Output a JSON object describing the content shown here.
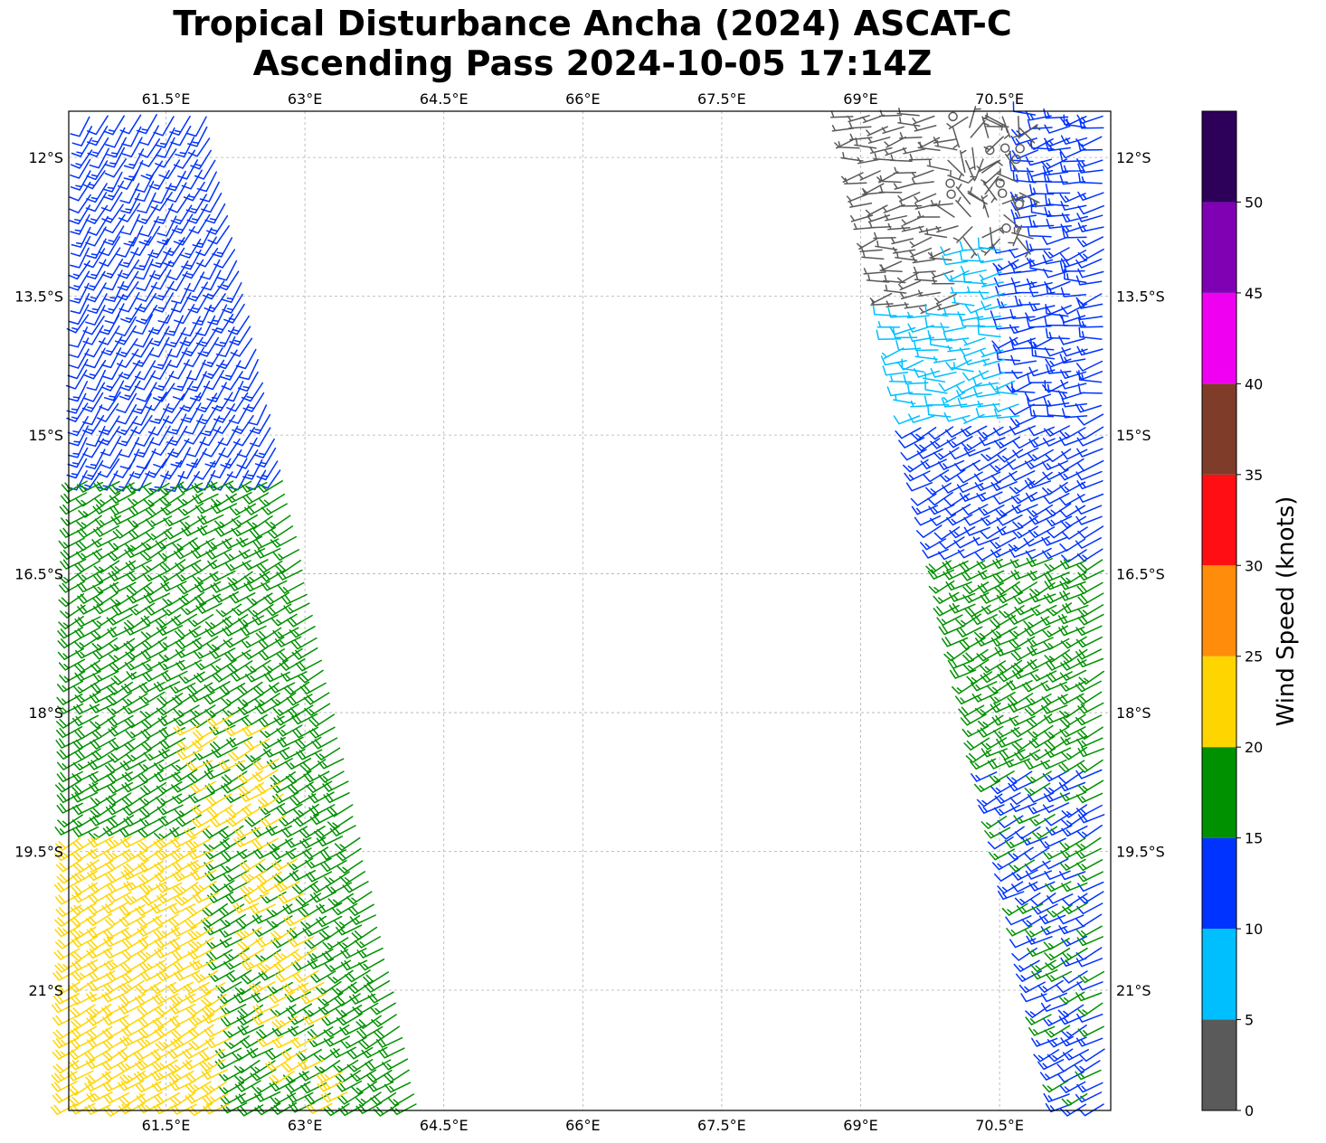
{
  "title": {
    "line1": "Tropical Disturbance Ancha (2024) ASCAT-C",
    "line2": "Ascending Pass 2024-10-05 17:14Z"
  },
  "map": {
    "lon_range": [
      60.45,
      71.7
    ],
    "lat_range": [
      -22.3,
      -11.5
    ],
    "lon_ticks": [
      {
        "value": 61.5,
        "label": "61.5°E"
      },
      {
        "value": 63.0,
        "label": "63°E"
      },
      {
        "value": 64.5,
        "label": "64.5°E"
      },
      {
        "value": 66.0,
        "label": "66°E"
      },
      {
        "value": 67.5,
        "label": "67.5°E"
      },
      {
        "value": 69.0,
        "label": "69°E"
      },
      {
        "value": 70.5,
        "label": "70.5°E"
      }
    ],
    "lat_ticks": [
      {
        "value": -12.0,
        "label": "12°S"
      },
      {
        "value": -13.5,
        "label": "13.5°S"
      },
      {
        "value": -15.0,
        "label": "15°S"
      },
      {
        "value": -16.5,
        "label": "16.5°S"
      },
      {
        "value": -18.0,
        "label": "18°S"
      },
      {
        "value": -19.5,
        "label": "19.5°S"
      },
      {
        "value": -21.0,
        "label": "21°S"
      }
    ],
    "grid": true,
    "grid_color": "#b0b0b0"
  },
  "colorbar": {
    "label": "Wind Speed (knots)",
    "min": 0,
    "max": 55,
    "bins": [
      {
        "from": 0,
        "to": 5,
        "color": "#5a5a5a"
      },
      {
        "from": 5,
        "to": 10,
        "color": "#00bfff"
      },
      {
        "from": 10,
        "to": 15,
        "color": "#0033ff"
      },
      {
        "from": 15,
        "to": 20,
        "color": "#009100"
      },
      {
        "from": 20,
        "to": 25,
        "color": "#ffd500"
      },
      {
        "from": 25,
        "to": 30,
        "color": "#ff8c0a"
      },
      {
        "from": 30,
        "to": 35,
        "color": "#ff0f14"
      },
      {
        "from": 35,
        "to": 40,
        "color": "#7f3c28"
      },
      {
        "from": 40,
        "to": 45,
        "color": "#f000f0"
      },
      {
        "from": 45,
        "to": 50,
        "color": "#8000b4"
      },
      {
        "from": 50,
        "to": 55,
        "color": "#2d0059"
      }
    ],
    "ticks": [
      {
        "value": 0,
        "label": "0"
      },
      {
        "value": 5,
        "label": "5"
      },
      {
        "value": 10,
        "label": "10"
      },
      {
        "value": 15,
        "label": "15"
      },
      {
        "value": 20,
        "label": "20"
      },
      {
        "value": 25,
        "label": "25"
      },
      {
        "value": 30,
        "label": "30"
      },
      {
        "value": 35,
        "label": "35"
      },
      {
        "value": 40,
        "label": "40"
      },
      {
        "value": 45,
        "label": "45"
      },
      {
        "value": 50,
        "label": "50"
      }
    ]
  },
  "swaths": [
    {
      "name": "west",
      "lat_top": -11.5,
      "lat_bottom": -22.3,
      "west_lon_top": 60.6,
      "west_lon_bottom": 60.45,
      "east_lon_top": 62.0,
      "east_lon_bottom": 64.3
    },
    {
      "name": "east",
      "lat_top": -11.5,
      "lat_bottom": -22.3,
      "west_lon_top": 68.8,
      "west_lon_bottom": 71.2,
      "east_lon_top": 71.7,
      "east_lon_bottom": 71.7
    }
  ]
}
